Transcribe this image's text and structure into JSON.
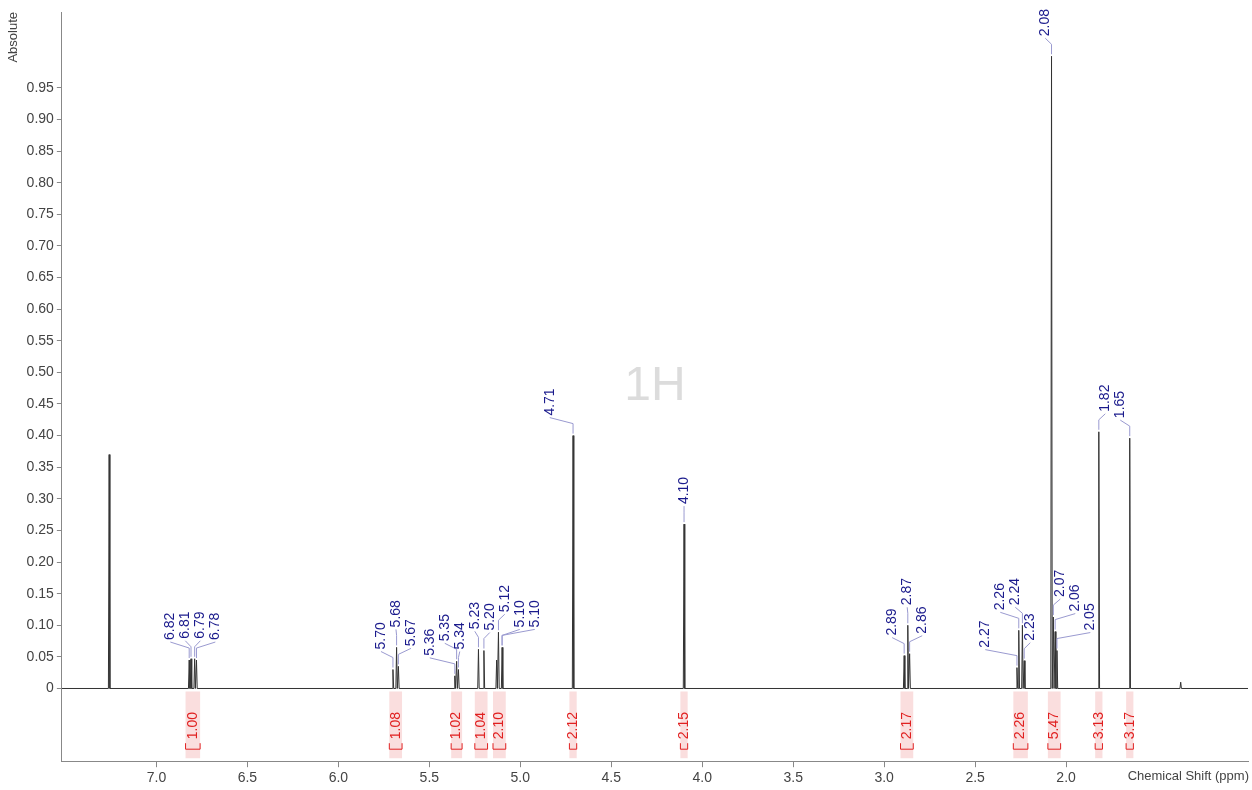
{
  "chart_data": {
    "type": "line",
    "xlabel": "Chemical Shift (ppm)",
    "ylabel": "Absolute",
    "xlim": [
      7.52,
      1.0
    ],
    "xticks": [
      {
        "value": 7,
        "label": "7.0"
      },
      6.5,
      {
        "value": 6,
        "label": "6.0"
      },
      5.5,
      {
        "value": 5,
        "label": "5.0"
      },
      4.5,
      {
        "value": 4,
        "label": "4.0"
      },
      3.5,
      {
        "value": 3,
        "label": "3.0"
      },
      2.5,
      {
        "value": 2,
        "label": "2.0"
      }
    ],
    "ylim": [
      -0.115,
      1.07
    ],
    "yticks": [
      0,
      0.05,
      {
        "value": 0.1,
        "label": "0.10"
      },
      0.15,
      {
        "value": 0.2,
        "label": "0.20"
      },
      0.25,
      {
        "value": 0.3,
        "label": "0.30"
      },
      0.35,
      {
        "value": 0.4,
        "label": "0.40"
      },
      0.45,
      {
        "value": 0.5,
        "label": "0.50"
      },
      0.55,
      {
        "value": 0.6,
        "label": "0.60"
      },
      0.65,
      {
        "value": 0.7,
        "label": "0.70"
      },
      0.75,
      {
        "value": 0.8,
        "label": "0.80"
      },
      0.85,
      {
        "value": 0.9,
        "label": "0.90"
      },
      0.95
    ],
    "grid": false,
    "legend": false,
    "series": [
      {
        "color": "#333333",
        "x": [
          7.52,
          7.264,
          7.26,
          7.256,
          6.824,
          6.82,
          6.816,
          6.814,
          6.81,
          6.806,
          6.794,
          6.79,
          6.786,
          6.784,
          6.78,
          6.776,
          5.704,
          5.7,
          5.696,
          5.684,
          5.68,
          5.676,
          5.674,
          5.67,
          5.666,
          5.364,
          5.36,
          5.356,
          5.354,
          5.35,
          5.346,
          5.344,
          5.34,
          5.336,
          5.234,
          5.23,
          5.226,
          5.204,
          5.2,
          5.196,
          5.134,
          5.13,
          5.126,
          5.124,
          5.12,
          5.116,
          5.104,
          5.1,
          5.096,
          4.714,
          4.71,
          4.706,
          4.104,
          4.1,
          4.096,
          2.894,
          2.89,
          2.886,
          2.874,
          2.87,
          2.866,
          2.864,
          2.86,
          2.856,
          2.274,
          2.27,
          2.266,
          2.264,
          2.26,
          2.256,
          2.244,
          2.24,
          2.236,
          2.234,
          2.23,
          2.226,
          2.084,
          2.08,
          2.076,
          2.074,
          2.07,
          2.066,
          2.064,
          2.06,
          2.056,
          2.054,
          2.05,
          2.046,
          1.824,
          1.82,
          1.816,
          1.654,
          1.65,
          1.646,
          1.374,
          1.37,
          1.366,
          1.0
        ],
        "values": [
          0,
          0,
          0.37,
          0,
          0,
          0.045,
          0,
          0,
          0.047,
          0,
          0,
          0.047,
          0,
          0,
          0.045,
          0,
          0,
          0.03,
          0,
          0,
          0.065,
          0,
          0,
          0.035,
          0,
          0,
          0.02,
          0,
          0,
          0.043,
          0,
          0,
          0.03,
          0,
          0,
          0.062,
          0,
          0,
          0.06,
          0,
          0,
          0.045,
          0,
          0,
          0.089,
          0,
          0,
          0.065,
          0,
          0,
          0.4,
          0,
          0,
          0.26,
          0,
          0,
          0.052,
          0,
          0,
          0.1,
          0,
          0,
          0.055,
          0,
          0,
          0.033,
          0,
          0,
          0.092,
          0,
          0,
          0.1,
          0,
          0,
          0.044,
          0,
          0,
          1.0,
          0,
          0,
          0.113,
          0,
          0,
          0.09,
          0,
          0,
          0.06,
          0,
          0,
          0.406,
          0,
          0,
          0.396,
          0,
          0,
          0.01,
          0,
          0
        ]
      }
    ],
    "annotations": [
      "1H",
      {
        "text": "6.82",
        "x": 6.82,
        "y": 0.045
      },
      {
        "text": "6.81",
        "x": 6.81,
        "y": 0.047
      },
      {
        "text": "6.79",
        "x": 6.79,
        "y": 0.047
      },
      {
        "text": "6.78",
        "x": 6.78,
        "y": 0.045
      },
      {
        "text": "5.70",
        "x": 5.7,
        "y": 0.03
      },
      {
        "text": "5.68",
        "x": 5.68,
        "y": 0.065
      },
      {
        "text": "5.67",
        "x": 5.67,
        "y": 0.035
      },
      {
        "text": "5.36",
        "x": 5.36,
        "y": 0.02
      },
      {
        "text": "5.35",
        "x": 5.35,
        "y": 0.043
      },
      {
        "text": "5.34",
        "x": 5.34,
        "y": 0.03
      },
      {
        "text": "5.23",
        "x": 5.23,
        "y": 0.062
      },
      {
        "text": "5.20",
        "x": 5.2,
        "y": 0.06
      },
      {
        "text": "5.12",
        "x": 5.12,
        "y": 0.089
      },
      {
        "text": "5.10",
        "x": 5.1,
        "y": 0.065
      },
      {
        "text": "5.10",
        "x": 5.1,
        "y": 0.065
      },
      {
        "text": "4.71",
        "x": 4.71,
        "y": 0.4
      },
      {
        "text": "4.10",
        "x": 4.1,
        "y": 0.26
      },
      {
        "text": "2.89",
        "x": 2.89,
        "y": 0.052
      },
      {
        "text": "2.87",
        "x": 2.87,
        "y": 0.1
      },
      {
        "text": "2.86",
        "x": 2.86,
        "y": 0.055
      },
      {
        "text": "2.27",
        "x": 2.27,
        "y": 0.033
      },
      {
        "text": "2.26",
        "x": 2.26,
        "y": 0.092
      },
      {
        "text": "2.24",
        "x": 2.24,
        "y": 0.1
      },
      {
        "text": "2.23",
        "x": 2.23,
        "y": 0.044
      },
      {
        "text": "2.08",
        "x": 2.08,
        "y": 1.0
      },
      {
        "text": "2.07",
        "x": 2.07,
        "y": 0.113
      },
      {
        "text": "2.06",
        "x": 2.06,
        "y": 0.09
      },
      {
        "text": "2.05",
        "x": 2.05,
        "y": 0.06
      },
      {
        "text": "1.82",
        "x": 1.82,
        "y": 0.406
      },
      {
        "text": "1.65",
        "x": 1.65,
        "y": 0.396
      }
    ],
    "bands": [
      {
        "axis": "x",
        "from": 6.84,
        "to": 6.76,
        "label": "1.00",
        "color": "#e02020"
      },
      {
        "axis": "x",
        "from": 5.72,
        "to": 5.65,
        "label": "1.08",
        "color": "#e02020"
      },
      {
        "axis": "x",
        "from": 5.38,
        "to": 5.32,
        "label": "1.02",
        "color": "#e02020"
      },
      {
        "axis": "x",
        "from": 5.25,
        "to": 5.18,
        "label": "1.04",
        "color": "#e02020"
      },
      {
        "axis": "x",
        "from": 5.15,
        "to": 5.08,
        "label": "2.10",
        "color": "#e02020"
      },
      {
        "axis": "x",
        "from": 4.73,
        "to": 4.69,
        "label": "2.12",
        "color": "#e02020"
      },
      {
        "axis": "x",
        "from": 4.12,
        "to": 4.08,
        "label": "2.15",
        "color": "#e02020"
      },
      {
        "axis": "x",
        "from": 2.91,
        "to": 2.84,
        "label": "2.17",
        "color": "#e02020"
      },
      {
        "axis": "x",
        "from": 2.29,
        "to": 2.21,
        "label": "2.26",
        "color": "#e02020"
      },
      {
        "axis": "x",
        "from": 2.1,
        "to": 2.03,
        "label": "5.47",
        "color": "#e02020"
      },
      {
        "axis": "x",
        "from": 1.84,
        "to": 1.8,
        "label": "3.13",
        "color": "#e02020"
      },
      {
        "axis": "x",
        "from": 1.67,
        "to": 1.63,
        "label": "3.17",
        "color": "#e02020"
      }
    ]
  }
}
